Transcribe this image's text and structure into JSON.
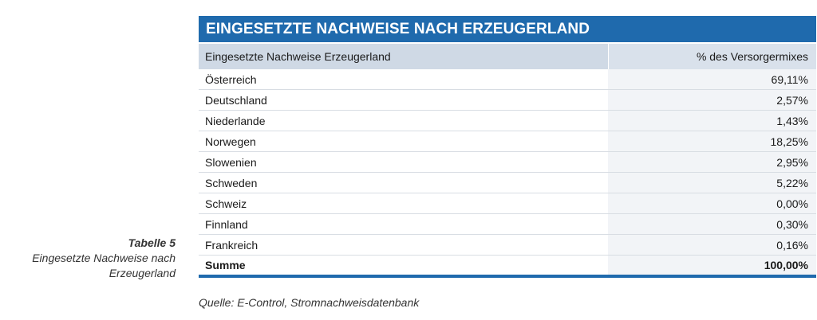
{
  "caption": {
    "title": "Tabelle 5",
    "lines": [
      "Eingesetzte Nachweise nach",
      "Erzeugerland"
    ]
  },
  "table": {
    "title": "EINGESETZTE NACHWEISE NACH ERZEUGERLAND",
    "headers": [
      "Eingesetzte Nachweise Erzeugerland",
      "% des Versorgermixes"
    ],
    "rows": [
      {
        "country": "Österreich",
        "value": "69,11%"
      },
      {
        "country": "Deutschland",
        "value": "2,57%"
      },
      {
        "country": "Niederlande",
        "value": "1,43%"
      },
      {
        "country": "Norwegen",
        "value": "18,25%"
      },
      {
        "country": "Slowenien",
        "value": "2,95%"
      },
      {
        "country": "Schweden",
        "value": "5,22%"
      },
      {
        "country": "Schweiz",
        "value": "0,00%"
      },
      {
        "country": "Finnland",
        "value": "0,30%"
      },
      {
        "country": "Frankreich",
        "value": "0,16%"
      }
    ],
    "total": {
      "label": "Summe",
      "value": "100,00%"
    }
  },
  "source": "Quelle: E-Control, Stromnachweisdatenbank",
  "colors": {
    "accent": "#1f6aad",
    "header_bg": "#cfd9e5"
  }
}
